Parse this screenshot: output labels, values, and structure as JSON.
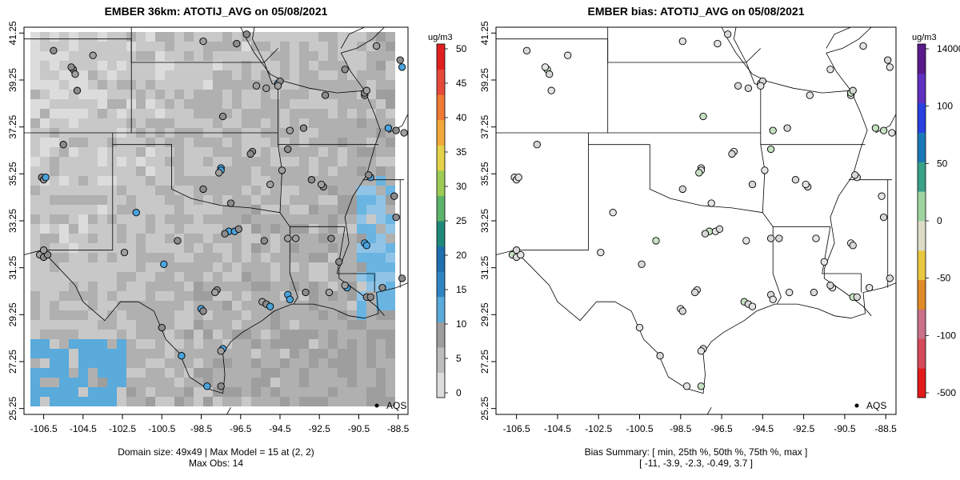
{
  "left_panel": {
    "title": "EMBER 36km: ATOTIJ_AVG on 05/08/2021",
    "footer_line1": "Domain size: 49x49 | Max Model = 15 at (2, 2)",
    "footer_line2": "Max Obs: 14",
    "legend_point_label": "AQS",
    "colorbar": {
      "unit": "ug/m3",
      "ticks": [
        "0",
        "5",
        "10",
        "15",
        "20",
        "25",
        "30",
        "35",
        "40",
        "45",
        "50"
      ],
      "colors": [
        "#dcdcdc",
        "#bdbdbd",
        "#9e9e9e",
        "#5aaadc",
        "#2f84c4",
        "#1f6fb0",
        "#1f8a7a",
        "#5db36a",
        "#9ccc54",
        "#e3d24a",
        "#f3a83a",
        "#ee7a36",
        "#e64a3a",
        "#e02020"
      ]
    }
  },
  "right_panel": {
    "title": "EMBER bias: ATOTIJ_AVG on 05/08/2021",
    "footer_line1": "Bias Summary: [ min, 25th %, 50th %, 75th %, max ]",
    "footer_line2": "[ -11,   -3.9,   -2.3,   -0.49,   3.7 ]",
    "legend_point_label": "AQS",
    "colorbar": {
      "unit": "ug/m3",
      "ticks": [
        "14000",
        "100",
        "50",
        "0",
        "-50",
        "-100",
        "-500"
      ],
      "colors": [
        "#e21a1a",
        "#d44a5a",
        "#c9708a",
        "#e08a2a",
        "#e8c840",
        "#dcdcc8",
        "#9fd4a0",
        "#3aa088",
        "#1a78b8",
        "#2a40e0",
        "#6030c0",
        "#5a1a8a"
      ]
    }
  },
  "axes": {
    "x_ticks": [
      "-106.5",
      "-104.5",
      "-102.5",
      "-100.5",
      "-98.5",
      "-96.5",
      "-94.5",
      "-92.5",
      "-90.5",
      "-88.5"
    ],
    "y_ticks": [
      "25.25",
      "27.25",
      "29.25",
      "31.25",
      "33.25",
      "35.25",
      "37.25",
      "39.25",
      "41.25"
    ]
  }
}
